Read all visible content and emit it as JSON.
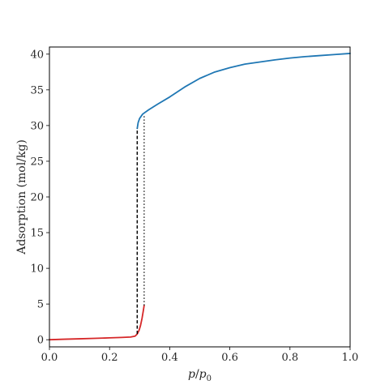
{
  "chart_data": {
    "type": "line",
    "xlabel": {
      "p1": "p",
      "slash": "/",
      "p2": "p",
      "sub": "0"
    },
    "ylabel": "Adsorption (mol/kg)",
    "xlim": [
      0.0,
      1.0
    ],
    "ylim": [
      -1.0,
      41.0
    ],
    "x_ticks": [
      "0.0",
      "0.2",
      "0.4",
      "0.6",
      "0.8",
      "1.0"
    ],
    "y_ticks": [
      "0",
      "5",
      "10",
      "15",
      "20",
      "25",
      "30",
      "35",
      "40"
    ],
    "grid": false,
    "series": [
      {
        "color": "#d62728",
        "style": "solid",
        "points": [
          [
            0.0,
            0.0
          ],
          [
            0.05,
            0.07
          ],
          [
            0.1,
            0.13
          ],
          [
            0.15,
            0.19
          ],
          [
            0.2,
            0.26
          ],
          [
            0.24,
            0.32
          ],
          [
            0.27,
            0.38
          ],
          [
            0.285,
            0.5
          ],
          [
            0.292,
            0.8
          ],
          [
            0.298,
            1.3
          ],
          [
            0.303,
            2.0
          ],
          [
            0.308,
            3.0
          ],
          [
            0.312,
            4.0
          ],
          [
            0.315,
            4.8
          ]
        ]
      },
      {
        "color": "#1f77b4",
        "style": "solid",
        "points": [
          [
            0.292,
            29.6
          ],
          [
            0.295,
            30.4
          ],
          [
            0.3,
            31.0
          ],
          [
            0.31,
            31.6
          ],
          [
            0.33,
            32.2
          ],
          [
            0.36,
            33.0
          ],
          [
            0.4,
            34.0
          ],
          [
            0.45,
            35.4
          ],
          [
            0.5,
            36.6
          ],
          [
            0.55,
            37.5
          ],
          [
            0.6,
            38.1
          ],
          [
            0.65,
            38.6
          ],
          [
            0.7,
            38.9
          ],
          [
            0.75,
            39.2
          ],
          [
            0.8,
            39.45
          ],
          [
            0.85,
            39.65
          ],
          [
            0.9,
            39.8
          ],
          [
            0.95,
            39.95
          ],
          [
            1.0,
            40.1
          ]
        ]
      },
      {
        "color": "#000000",
        "style": "dashed",
        "points": [
          [
            0.292,
            0.8
          ],
          [
            0.292,
            29.6
          ]
        ]
      },
      {
        "color": "#000000",
        "style": "dotted",
        "points": [
          [
            0.315,
            4.8
          ],
          [
            0.315,
            31.4
          ]
        ]
      }
    ]
  }
}
